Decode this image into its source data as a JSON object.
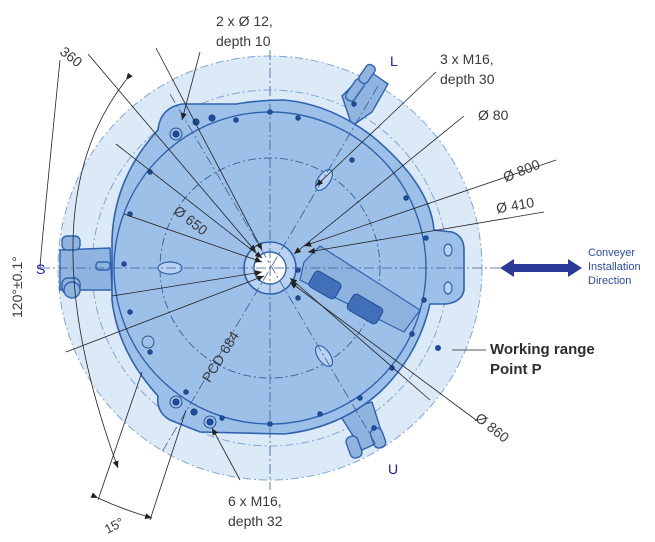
{
  "labels": {
    "holes_top": [
      "2 x Ø 12,",
      "depth 10"
    ],
    "holes_right": [
      "3 x M16,",
      "depth 30"
    ],
    "holes_bottom": [
      "6 x M16,",
      "depth 32"
    ],
    "d80": "Ø 80",
    "d800": "Ø 800",
    "d410": "Ø 410",
    "d650": "Ø 650",
    "d860": "Ø 860",
    "r360": "360",
    "pcd": "PCD 684",
    "angle": "120°±0.1°",
    "deg15": "15°",
    "L": "L",
    "S": "S",
    "U": "U"
  },
  "conveyer": [
    "Conveyer",
    "Installation",
    "Direction"
  ],
  "working": [
    "Working range",
    "Point P"
  ],
  "colors": {
    "working_range": "#dce9f6",
    "base_plate": "#9dc0e8",
    "outline": "#2f62b0",
    "hole": "#1c4e9e",
    "arrow": "#2b3a97",
    "label_blue": "#1a1aa8"
  },
  "icons": {
    "arrow": "double-headed-arrow-icon",
    "hole": "bolt-hole-icon"
  }
}
